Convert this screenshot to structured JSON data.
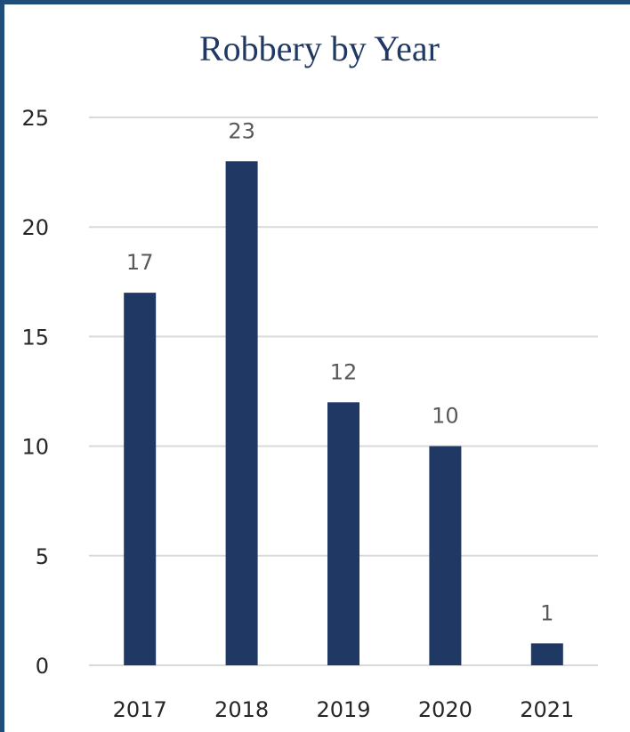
{
  "chart_data": {
    "type": "bar",
    "title": "Robbery by Year",
    "categories": [
      "2017",
      "2018",
      "2019",
      "2020",
      "2021"
    ],
    "values": [
      17,
      23,
      12,
      10,
      1
    ],
    "data_labels": [
      "17",
      "23",
      "12",
      "10",
      "1"
    ],
    "y_ticks": [
      "0",
      "5",
      "10",
      "15",
      "20",
      "25"
    ],
    "ylim": [
      0,
      25
    ],
    "xlabel": "",
    "ylabel": "",
    "grid": true,
    "legend": "none",
    "colors": {
      "bar": "#203864",
      "title": "#1f3864",
      "grid": "#d9d9d9",
      "label_text": "#595959",
      "axis_text": "#262626",
      "frame": "#1f4e79"
    }
  }
}
